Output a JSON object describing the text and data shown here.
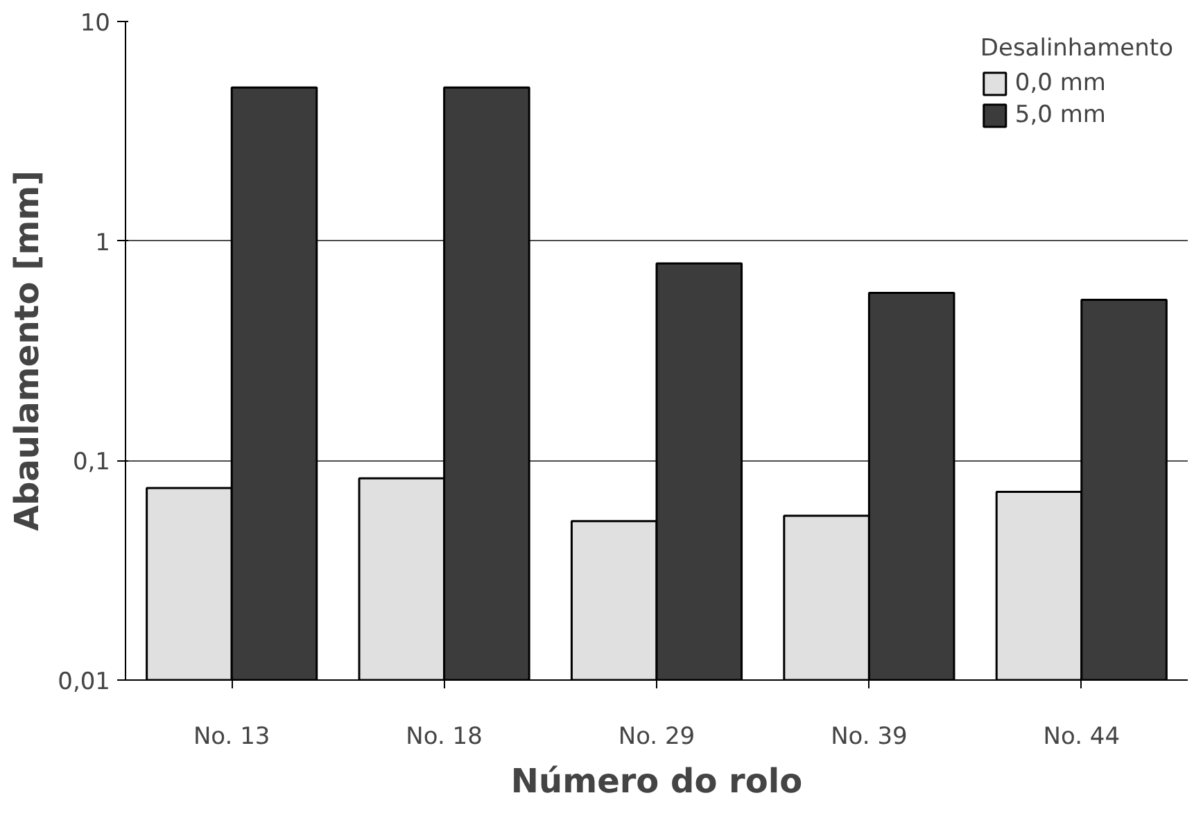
{
  "chart_data": {
    "type": "bar",
    "xlabel": "Número do rolo",
    "ylabel": "Abaulamento [mm]",
    "legend_title": "Desalinhamento",
    "categories": [
      "No. 13",
      "No. 18",
      "No. 29",
      "No. 39",
      "No. 44"
    ],
    "series": [
      {
        "name": "0,0 mm",
        "color": "#e0e0e0",
        "values": [
          0.075,
          0.083,
          0.053,
          0.056,
          0.072
        ]
      },
      {
        "name": "5,0 mm",
        "color": "#3c3c3c",
        "values": [
          5,
          5,
          0.79,
          0.58,
          0.54
        ]
      }
    ],
    "log": "y",
    "ylim": [
      0.01,
      10
    ],
    "yticks": [
      {
        "value": 0.01,
        "label": "0,01"
      },
      {
        "value": 0.1,
        "label": "0,1"
      },
      {
        "value": 1,
        "label": "1"
      },
      {
        "value": 10,
        "label": "10"
      }
    ],
    "grid": "y",
    "legend": "top right"
  }
}
